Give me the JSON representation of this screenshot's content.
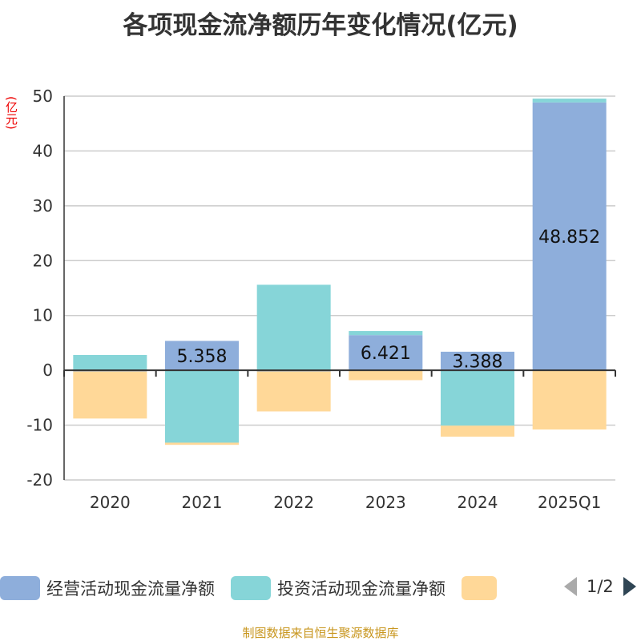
{
  "chart_data": {
    "type": "bar",
    "stacked": true,
    "title": "各项现金流净额历年变化情况(亿元)",
    "ylabel": "(亿元)",
    "ylim": [
      -20,
      50
    ],
    "yticks": [
      -20,
      -10,
      0,
      10,
      20,
      30,
      40,
      50
    ],
    "grid": true,
    "legend_placement": "bottom",
    "categories": [
      "2020",
      "2021",
      "2022",
      "2023",
      "2024",
      "2025Q1"
    ],
    "series": [
      {
        "name": "经营活动现金流量净额",
        "color": "#8eaedb",
        "values": [
          -0.2,
          5.358,
          -0.2,
          6.421,
          3.388,
          48.852
        ],
        "labels": [
          "",
          "5.358",
          "",
          "6.421",
          "3.388",
          "48.852"
        ]
      },
      {
        "name": "投资活动现金流量净额",
        "color": "#86d5d8",
        "values": [
          2.8,
          -13.2,
          15.6,
          0.75,
          -10.1,
          0.7
        ]
      },
      {
        "name": "",
        "color": "#ffd898",
        "values": [
          -8.6,
          -0.4,
          -7.3,
          -1.8,
          -2.0,
          -10.8
        ]
      }
    ]
  },
  "legend": {
    "page": "1/2"
  },
  "source": "制图数据来自恒生聚源数据库"
}
